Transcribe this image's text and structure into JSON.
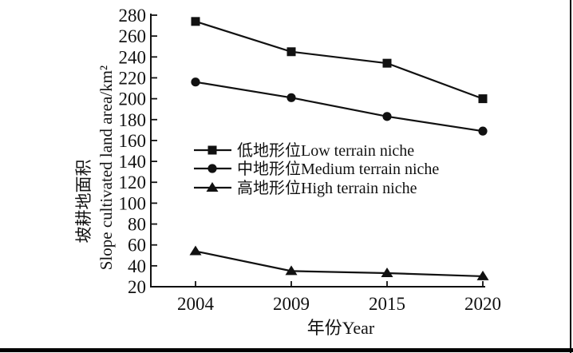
{
  "page": {
    "background_color": "#ffffff",
    "border_right_color": "#000000",
    "border_bottom_color": "#000000"
  },
  "chart_data": {
    "type": "line",
    "title": "",
    "xlabel": "年份Year",
    "ylabel_cn": "坡耕地面积",
    "ylabel_en": "Slope cultivated land area/km²",
    "categories": [
      "2004",
      "2009",
      "2015",
      "2020"
    ],
    "ylim": [
      20,
      280
    ],
    "ytick_step": 20,
    "grid": false,
    "legend_position": "inside-left-middle",
    "axis_color": "#111111",
    "series_color": "#111111",
    "series": [
      {
        "name": "低地形位Low terrain niche",
        "marker": "square",
        "values": [
          274,
          245,
          234,
          200
        ]
      },
      {
        "name": "中地形位Medium terrain niche",
        "marker": "circle",
        "values": [
          216,
          201,
          183,
          169
        ]
      },
      {
        "name": "高地形位High terrain niche",
        "marker": "triangle",
        "values": [
          54,
          35,
          33,
          30
        ]
      }
    ]
  }
}
